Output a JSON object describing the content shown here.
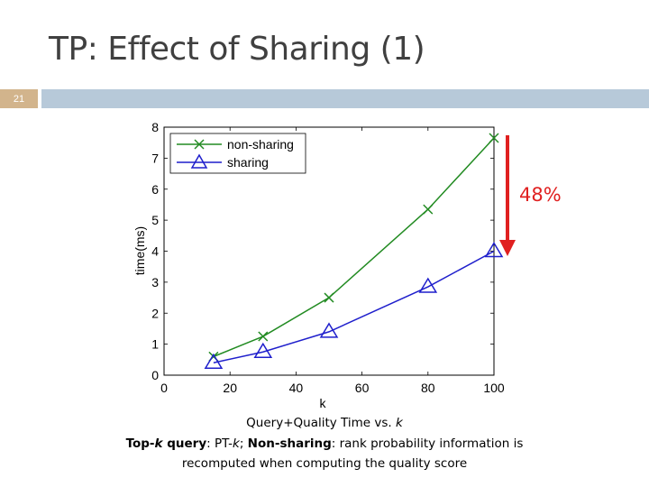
{
  "slide": {
    "title": "TP: Effect of Sharing (1)",
    "number": "21",
    "accent_color": "#b7c9d9",
    "number_bg_color": "#d2b48c"
  },
  "annotation": {
    "text": "48%",
    "color": "#e02020"
  },
  "caption": {
    "line1": {
      "pre": "Query+Quality Time vs. ",
      "italic": "k"
    },
    "line2": {
      "top": "Top-",
      "k1": "k",
      "query": " query",
      "mid": ": PT-",
      "k2": "k",
      "semi": "; ",
      "nonsharing": "Non-sharing",
      "rest": ": rank probability information is"
    },
    "line3": "recomputed when computing the quality score"
  },
  "chart_data": {
    "type": "line",
    "xlabel": "k",
    "ylabel": "time(ms)",
    "xlim": [
      0,
      100
    ],
    "ylim": [
      0,
      8
    ],
    "xticks": [
      "0",
      "20",
      "40",
      "60",
      "80",
      "100"
    ],
    "yticks": [
      "0",
      "1",
      "2",
      "3",
      "4",
      "5",
      "6",
      "7",
      "8"
    ],
    "x": [
      15,
      30,
      50,
      80,
      100
    ],
    "legend_position": "top-left",
    "grid": false,
    "series": [
      {
        "name": "non-sharing",
        "values": [
          0.6,
          1.25,
          2.5,
          5.35,
          7.65
        ],
        "color": "#228b22",
        "marker": "x"
      },
      {
        "name": "sharing",
        "values": [
          0.4,
          0.75,
          1.4,
          2.85,
          4.0
        ],
        "color": "#1f1fcc",
        "marker": "triangle"
      }
    ]
  }
}
